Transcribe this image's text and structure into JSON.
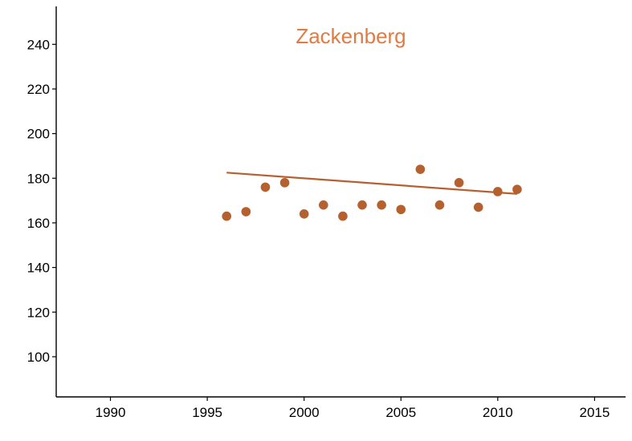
{
  "chart_data": {
    "type": "scatter",
    "title": "Zackenberg",
    "xlabel": "",
    "ylabel": "",
    "xlim": [
      1987.2,
      1989.5
    ],
    "ylim": [
      82,
      257
    ],
    "x_ticks": [
      1990,
      1995,
      2000,
      2005,
      2010,
      2015
    ],
    "y_ticks": [
      100,
      120,
      140,
      160,
      180,
      200,
      220,
      240
    ],
    "grid": false,
    "legend": "none",
    "colors": {
      "title": "#E07B43",
      "points": "#B5602F",
      "trend": "#B5602F",
      "axis": "#000000"
    },
    "series": [
      {
        "points": [
          {
            "x": 1996,
            "y": 163
          },
          {
            "x": 1997,
            "y": 165
          },
          {
            "x": 1998,
            "y": 176
          },
          {
            "x": 1999,
            "y": 178
          },
          {
            "x": 2000,
            "y": 164
          },
          {
            "x": 2001,
            "y": 168
          },
          {
            "x": 2002,
            "y": 163
          },
          {
            "x": 2003,
            "y": 168
          },
          {
            "x": 2004,
            "y": 168
          },
          {
            "x": 2005,
            "y": 166
          },
          {
            "x": 2006,
            "y": 184
          },
          {
            "x": 2007,
            "y": 168
          },
          {
            "x": 2008,
            "y": 178
          },
          {
            "x": 2009,
            "y": 167
          },
          {
            "x": 2010,
            "y": 174
          },
          {
            "x": 2011,
            "y": 175
          }
        ]
      }
    ],
    "trend_line": [
      {
        "x": 1996,
        "y": 182.5
      },
      {
        "x": 2011,
        "y": 173
      }
    ]
  }
}
